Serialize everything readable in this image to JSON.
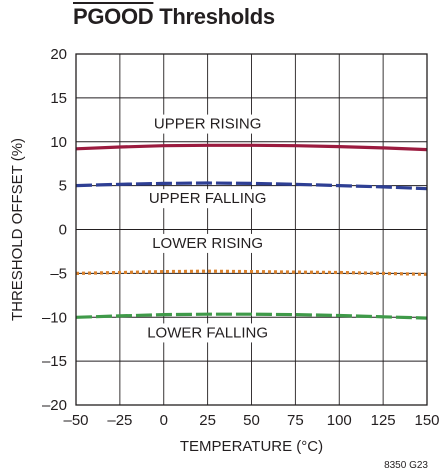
{
  "title": {
    "overbar_part": "PGOOD",
    "rest": " Thresholds"
  },
  "figure_code": "8350 G23",
  "chart_data": {
    "type": "line",
    "title": "PGOOD Thresholds",
    "xlabel": "TEMPERATURE (°C)",
    "ylabel": "THRESHOLD OFFSET (%)",
    "xlim": [
      -50,
      150
    ],
    "ylim": [
      -20,
      20
    ],
    "x_ticks": [
      -50,
      -25,
      0,
      25,
      50,
      75,
      100,
      125,
      150
    ],
    "y_ticks": [
      -20,
      -15,
      -10,
      -5,
      0,
      5,
      10,
      15,
      20
    ],
    "x_tick_labels": [
      "–50",
      "–25",
      "0",
      "25",
      "50",
      "75",
      "100",
      "125",
      "150"
    ],
    "y_tick_labels": [
      "–20",
      "–15",
      "–10",
      "–5",
      "0",
      "5",
      "10",
      "15",
      "20"
    ],
    "grid": true,
    "legend": "inline labels",
    "series": [
      {
        "name": "UPPER RISING",
        "style": "solid",
        "color": "#9b1b3f",
        "label_at": [
          25,
          11.5
        ],
        "x": [
          -50,
          -25,
          0,
          25,
          50,
          75,
          100,
          125,
          150
        ],
        "y": [
          9.2,
          9.4,
          9.55,
          9.6,
          9.6,
          9.55,
          9.45,
          9.3,
          9.1
        ]
      },
      {
        "name": "UPPER FALLING",
        "style": "dash",
        "color": "#2e3f94",
        "label_at": [
          25,
          3.0
        ],
        "x": [
          -50,
          -25,
          0,
          25,
          50,
          75,
          100,
          125,
          150
        ],
        "y": [
          5.0,
          5.15,
          5.25,
          5.3,
          5.25,
          5.15,
          5.0,
          4.85,
          4.65
        ]
      },
      {
        "name": "LOWER RISING",
        "style": "dot",
        "color": "#d9812c",
        "label_at": [
          25,
          -2.1
        ],
        "x": [
          -50,
          -25,
          0,
          25,
          50,
          75,
          100,
          125,
          150
        ],
        "y": [
          -5.0,
          -4.9,
          -4.8,
          -4.75,
          -4.8,
          -4.85,
          -4.9,
          -5.0,
          -5.1
        ]
      },
      {
        "name": "LOWER FALLING",
        "style": "dash",
        "color": "#3f9a49",
        "label_at": [
          25,
          -12.3
        ],
        "x": [
          -50,
          -25,
          0,
          25,
          50,
          75,
          100,
          125,
          150
        ],
        "y": [
          -10.0,
          -9.85,
          -9.7,
          -9.65,
          -9.65,
          -9.7,
          -9.8,
          -9.95,
          -10.1
        ]
      }
    ]
  }
}
